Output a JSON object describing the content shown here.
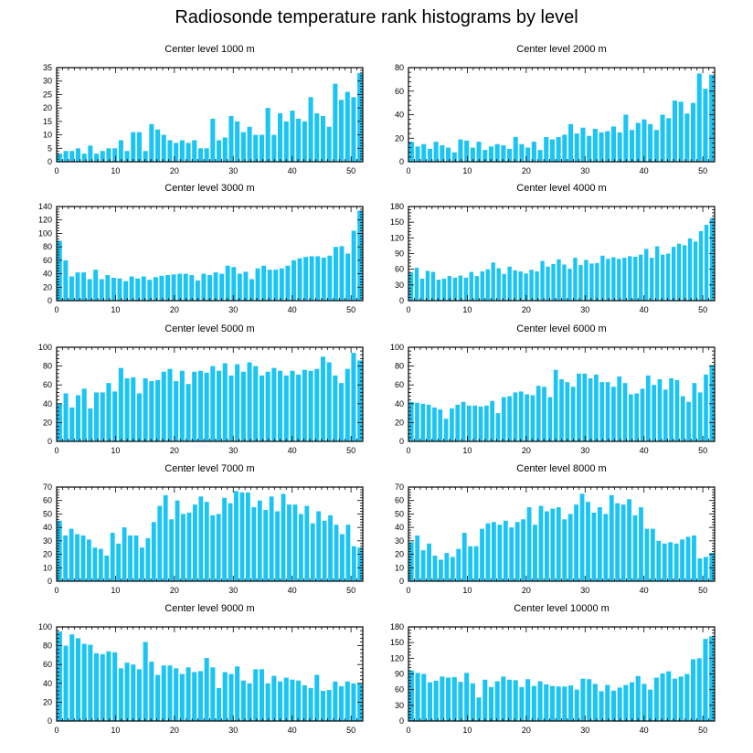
{
  "title": "Radiosonde temperature rank histograms by level",
  "colors": {
    "bar": "#1CC4F4",
    "axis": "#000000",
    "background": "#FFFFFF"
  },
  "chart_data": [
    {
      "type": "bar",
      "title": "Center level 1000 m",
      "xlim": [
        0,
        52
      ],
      "ylim": [
        0,
        35
      ],
      "xticks": [
        0,
        10,
        20,
        30,
        40,
        50
      ],
      "yticks": [
        0,
        5,
        10,
        15,
        20,
        25,
        30,
        35
      ],
      "values": [
        3,
        4,
        4,
        5,
        3,
        6,
        3,
        4,
        5,
        5,
        8,
        4,
        11,
        11,
        4,
        14,
        12,
        10,
        8,
        7,
        8,
        7,
        8,
        5,
        5,
        16,
        8,
        9,
        17,
        15,
        11,
        13,
        10,
        10,
        20,
        10,
        18,
        15,
        19,
        16,
        15,
        24,
        18,
        17,
        13,
        29,
        23,
        26,
        24,
        33
      ]
    },
    {
      "type": "bar",
      "title": "Center level 2000 m",
      "xlim": [
        0,
        52
      ],
      "ylim": [
        0,
        80
      ],
      "xticks": [
        0,
        10,
        20,
        30,
        40,
        50
      ],
      "yticks": [
        0,
        20,
        40,
        60,
        80
      ],
      "values": [
        17,
        13,
        15,
        11,
        17,
        14,
        12,
        8,
        19,
        18,
        12,
        17,
        10,
        13,
        15,
        14,
        11,
        21,
        15,
        12,
        17,
        10,
        21,
        19,
        21,
        23,
        32,
        24,
        29,
        22,
        28,
        25,
        26,
        30,
        25,
        40,
        27,
        33,
        36,
        32,
        27,
        40,
        37,
        52,
        51,
        41,
        50,
        75,
        62,
        74
      ]
    },
    {
      "type": "bar",
      "title": "Center level 3000 m",
      "xlim": [
        0,
        52
      ],
      "ylim": [
        0,
        140
      ],
      "xticks": [
        0,
        10,
        20,
        30,
        40,
        50
      ],
      "yticks": [
        0,
        20,
        40,
        60,
        80,
        100,
        120,
        140
      ],
      "values": [
        89,
        60,
        36,
        42,
        42,
        32,
        46,
        32,
        38,
        34,
        33,
        29,
        36,
        33,
        36,
        31,
        35,
        37,
        38,
        39,
        40,
        40,
        38,
        30,
        40,
        38,
        42,
        40,
        52,
        50,
        40,
        43,
        32,
        48,
        52,
        46,
        46,
        48,
        52,
        60,
        63,
        65,
        66,
        66,
        64,
        67,
        80,
        81,
        70,
        104,
        134
      ]
    },
    {
      "type": "bar",
      "title": "Center level 4000 m",
      "xlim": [
        0,
        52
      ],
      "ylim": [
        0,
        180
      ],
      "xticks": [
        0,
        10,
        20,
        30,
        40,
        50
      ],
      "yticks": [
        0,
        30,
        60,
        90,
        120,
        150,
        180
      ],
      "values": [
        54,
        63,
        42,
        57,
        55,
        40,
        42,
        47,
        44,
        48,
        44,
        55,
        47,
        56,
        60,
        73,
        62,
        51,
        65,
        58,
        56,
        52,
        59,
        56,
        76,
        65,
        70,
        79,
        69,
        61,
        82,
        68,
        78,
        71,
        72,
        86,
        80,
        83,
        80,
        82,
        85,
        84,
        88,
        99,
        82,
        104,
        88,
        90,
        103,
        109,
        106,
        119,
        113,
        133,
        145,
        158
      ]
    },
    {
      "type": "bar",
      "title": "Center level 5000 m",
      "xlim": [
        0,
        52
      ],
      "ylim": [
        0,
        100
      ],
      "xticks": [
        0,
        10,
        20,
        30,
        40,
        50
      ],
      "yticks": [
        0,
        20,
        40,
        60,
        80,
        100
      ],
      "values": [
        40,
        51,
        36,
        49,
        56,
        35,
        52,
        52,
        62,
        53,
        78,
        67,
        68,
        51,
        67,
        64,
        65,
        74,
        77,
        64,
        75,
        61,
        74,
        75,
        73,
        80,
        75,
        83,
        70,
        82,
        74,
        84,
        80,
        70,
        74,
        78,
        75,
        70,
        75,
        71,
        76,
        75,
        77,
        90,
        84,
        70,
        62,
        77,
        94,
        86
      ]
    },
    {
      "type": "bar",
      "title": "Center level 6000 m",
      "xlim": [
        0,
        52
      ],
      "ylim": [
        0,
        100
      ],
      "xticks": [
        0,
        10,
        20,
        30,
        40,
        50
      ],
      "yticks": [
        0,
        20,
        40,
        60,
        80,
        100
      ],
      "values": [
        42,
        41,
        40,
        39,
        36,
        34,
        24,
        35,
        39,
        42,
        38,
        38,
        37,
        38,
        43,
        30,
        47,
        48,
        52,
        53,
        50,
        49,
        59,
        58,
        47,
        76,
        66,
        63,
        58,
        72,
        72,
        67,
        71,
        63,
        63,
        58,
        69,
        62,
        50,
        51,
        56,
        70,
        60,
        66,
        55,
        67,
        65,
        48,
        42,
        62,
        52,
        71,
        81
      ]
    },
    {
      "type": "bar",
      "title": "Center level 7000 m",
      "xlim": [
        0,
        52
      ],
      "ylim": [
        0,
        70
      ],
      "xticks": [
        0,
        10,
        20,
        30,
        40,
        50
      ],
      "yticks": [
        0,
        10,
        20,
        30,
        40,
        50,
        60,
        70
      ],
      "values": [
        45,
        34,
        39,
        35,
        34,
        31,
        25,
        24,
        19,
        36,
        28,
        40,
        34,
        34,
        25,
        32,
        44,
        56,
        64,
        46,
        60,
        50,
        51,
        57,
        63,
        59,
        49,
        50,
        62,
        58,
        67,
        66,
        66,
        55,
        60,
        53,
        63,
        52,
        65,
        57,
        57,
        50,
        56,
        43,
        52,
        45,
        49,
        42,
        35,
        42,
        26,
        25
      ]
    },
    {
      "type": "bar",
      "title": "Center level 8000 m",
      "xlim": [
        0,
        52
      ],
      "ylim": [
        0,
        70
      ],
      "xticks": [
        0,
        10,
        20,
        30,
        40,
        50
      ],
      "yticks": [
        0,
        10,
        20,
        30,
        40,
        50,
        60,
        70
      ],
      "values": [
        29,
        34,
        23,
        28,
        19,
        16,
        21,
        18,
        24,
        36,
        26,
        26,
        39,
        43,
        44,
        42,
        45,
        40,
        44,
        46,
        55,
        42,
        56,
        52,
        54,
        55,
        46,
        50,
        57,
        65,
        59,
        51,
        55,
        50,
        64,
        58,
        57,
        61,
        49,
        55,
        39,
        39,
        30,
        28,
        29,
        28,
        31,
        33,
        34,
        17,
        18,
        21
      ]
    },
    {
      "type": "bar",
      "title": "Center level 9000 m",
      "xlim": [
        0,
        52
      ],
      "ylim": [
        0,
        100
      ],
      "xticks": [
        0,
        10,
        20,
        30,
        40,
        50
      ],
      "yticks": [
        0,
        20,
        40,
        60,
        80,
        100
      ],
      "values": [
        95,
        80,
        92,
        88,
        82,
        81,
        72,
        71,
        74,
        73,
        56,
        62,
        60,
        55,
        84,
        63,
        49,
        59,
        59,
        56,
        50,
        57,
        52,
        53,
        67,
        57,
        35,
        52,
        50,
        58,
        43,
        40,
        55,
        55,
        40,
        48,
        42,
        46,
        44,
        43,
        38,
        35,
        49,
        32,
        33,
        42,
        37,
        42,
        40,
        40
      ]
    },
    {
      "type": "bar",
      "title": "Center level 10000 m",
      "xlim": [
        0,
        52
      ],
      "ylim": [
        0,
        180
      ],
      "xticks": [
        0,
        10,
        20,
        30,
        40,
        50
      ],
      "yticks": [
        0,
        30,
        60,
        90,
        120,
        150,
        180
      ],
      "values": [
        97,
        92,
        90,
        74,
        77,
        85,
        83,
        84,
        75,
        92,
        72,
        45,
        79,
        65,
        76,
        85,
        79,
        78,
        65,
        80,
        67,
        76,
        70,
        67,
        66,
        66,
        68,
        60,
        81,
        80,
        71,
        57,
        69,
        58,
        64,
        69,
        74,
        86,
        71,
        60,
        83,
        91,
        95,
        81,
        85,
        90,
        118,
        120,
        157,
        162
      ]
    }
  ]
}
